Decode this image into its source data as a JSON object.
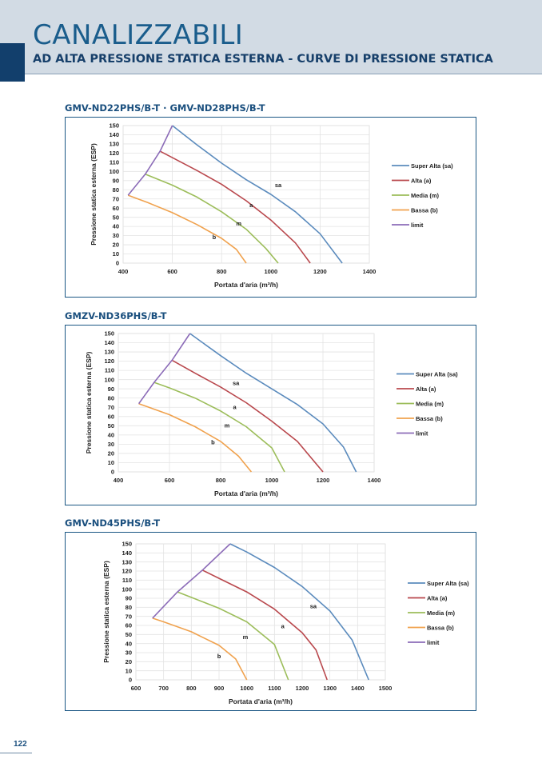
{
  "header": {
    "title": "CANALIZZABILI",
    "subtitle": "AD ALTA PRESSIONE STATICA ESTERNA - CURVE DI PRESSIONE STATICA"
  },
  "page_number": "122",
  "colors": {
    "super_alta": "#5b8bbd",
    "alta": "#b9484d",
    "media": "#9cbd5a",
    "bassa": "#f0a24e",
    "limit": "#8c6cb8"
  },
  "chart_data": [
    {
      "type": "line",
      "title": "GMV-ND22PHS/B-T · GMV-ND28PHS/B-T",
      "xlabel": "Portata d'aria (m³/h)",
      "ylabel": "Pressione statica esterna (ESP)",
      "xlim": [
        400,
        1400
      ],
      "ylim": [
        0,
        150
      ],
      "x_ticks": [
        "400",
        "600",
        "800",
        "1000",
        "1200",
        "1400"
      ],
      "y_ticks": [
        "0",
        "10",
        "20",
        "30",
        "40",
        "50",
        "60",
        "70",
        "80",
        "90",
        "100",
        "110",
        "120",
        "130",
        "140",
        "150"
      ],
      "legend": [
        "Super Alta (sa)",
        "Alta (a)",
        "Media (m)",
        "Bassa (b)",
        "limit"
      ],
      "series": [
        {
          "name": "Super Alta (sa)",
          "label": "sa",
          "points": [
            [
              600,
              150
            ],
            [
              700,
              129
            ],
            [
              800,
              109
            ],
            [
              900,
              91
            ],
            [
              1000,
              75
            ],
            [
              1100,
              56
            ],
            [
              1200,
              32
            ],
            [
              1290,
              0
            ]
          ]
        },
        {
          "name": "Alta (a)",
          "label": "a",
          "points": [
            [
              550,
              122
            ],
            [
              600,
              115
            ],
            [
              700,
              101
            ],
            [
              800,
              86
            ],
            [
              900,
              68
            ],
            [
              1000,
              47
            ],
            [
              1100,
              22
            ],
            [
              1160,
              0
            ]
          ]
        },
        {
          "name": "Media (m)",
          "label": "m",
          "points": [
            [
              490,
              97
            ],
            [
              600,
              85
            ],
            [
              700,
              72
            ],
            [
              800,
              56
            ],
            [
              900,
              37
            ],
            [
              980,
              16
            ],
            [
              1030,
              0
            ]
          ]
        },
        {
          "name": "Bassa (b)",
          "label": "b",
          "points": [
            [
              420,
              74
            ],
            [
              500,
              66
            ],
            [
              600,
              55
            ],
            [
              700,
              42
            ],
            [
              800,
              27
            ],
            [
              860,
              15
            ],
            [
              900,
              0
            ]
          ]
        },
        {
          "name": "limit",
          "label": "",
          "points": [
            [
              420,
              74
            ],
            [
              490,
              97
            ],
            [
              550,
              122
            ],
            [
              600,
              150
            ]
          ]
        }
      ],
      "label_positions": [
        [
          1030,
          83
        ],
        [
          920,
          61
        ],
        [
          870,
          41
        ],
        [
          770,
          26
        ]
      ]
    },
    {
      "type": "line",
      "title": "GMZV-ND36PHS/B-T",
      "xlabel": "Portata d'aria (m³/h)",
      "ylabel": "Pressione statica esterna (ESP)",
      "xlim": [
        400,
        1400
      ],
      "ylim": [
        0,
        150
      ],
      "x_ticks": [
        "400",
        "600",
        "800",
        "1000",
        "1200",
        "1400"
      ],
      "y_ticks": [
        "0",
        "10",
        "20",
        "30",
        "40",
        "50",
        "60",
        "70",
        "80",
        "90",
        "100",
        "110",
        "120",
        "130",
        "140",
        "150"
      ],
      "legend": [
        "Super Alta (sa)",
        "Alta (a)",
        "Media (m)",
        "Bassa (b)",
        "limit"
      ],
      "series": [
        {
          "name": "Super Alta (sa)",
          "label": "sa",
          "points": [
            [
              680,
              150
            ],
            [
              800,
              126
            ],
            [
              900,
              107
            ],
            [
              1000,
              90
            ],
            [
              1100,
              73
            ],
            [
              1200,
              52
            ],
            [
              1280,
              27
            ],
            [
              1330,
              0
            ]
          ]
        },
        {
          "name": "Alta (a)",
          "label": "a",
          "points": [
            [
              610,
              121
            ],
            [
              700,
              107
            ],
            [
              800,
              92
            ],
            [
              900,
              75
            ],
            [
              1000,
              55
            ],
            [
              1100,
              33
            ],
            [
              1200,
              0
            ]
          ]
        },
        {
          "name": "Media (m)",
          "label": "m",
          "points": [
            [
              540,
              97
            ],
            [
              600,
              91
            ],
            [
              700,
              80
            ],
            [
              800,
              66
            ],
            [
              900,
              49
            ],
            [
              1000,
              26
            ],
            [
              1050,
              0
            ]
          ]
        },
        {
          "name": "Bassa (b)",
          "label": "b",
          "points": [
            [
              480,
              74
            ],
            [
              600,
              62
            ],
            [
              700,
              49
            ],
            [
              800,
              33
            ],
            [
              870,
              17
            ],
            [
              920,
              0
            ]
          ]
        },
        {
          "name": "limit",
          "label": "",
          "points": [
            [
              480,
              74
            ],
            [
              540,
              97
            ],
            [
              610,
              121
            ],
            [
              680,
              150
            ]
          ]
        }
      ],
      "label_positions": [
        [
          860,
          94
        ],
        [
          855,
          68
        ],
        [
          825,
          48
        ],
        [
          770,
          30
        ]
      ]
    },
    {
      "type": "line",
      "title": "GMV-ND45PHS/B-T",
      "xlabel": "Portata d'aria (m³/h)",
      "ylabel": "Pressione statica esterna (ESP)",
      "xlim": [
        600,
        1500
      ],
      "ylim": [
        0,
        150
      ],
      "x_ticks": [
        "600",
        "700",
        "800",
        "900",
        "1000",
        "1100",
        "1200",
        "1300",
        "1400",
        "1500"
      ],
      "y_ticks": [
        "0",
        "10",
        "20",
        "30",
        "40",
        "50",
        "60",
        "70",
        "80",
        "90",
        "100",
        "110",
        "120",
        "130",
        "140",
        "150"
      ],
      "legend": [
        "Super Alta (sa)",
        "Alta (a)",
        "Media (m)",
        "Bassa (b)",
        "limit"
      ],
      "series": [
        {
          "name": "Super Alta (sa)",
          "label": "sa",
          "points": [
            [
              940,
              150
            ],
            [
              1000,
              141
            ],
            [
              1100,
              124
            ],
            [
              1200,
              103
            ],
            [
              1300,
              76
            ],
            [
              1380,
              44
            ],
            [
              1440,
              0
            ]
          ]
        },
        {
          "name": "Alta (a)",
          "label": "a",
          "points": [
            [
              840,
              121
            ],
            [
              900,
              112
            ],
            [
              1000,
              97
            ],
            [
              1100,
              78
            ],
            [
              1200,
              52
            ],
            [
              1250,
              33
            ],
            [
              1290,
              0
            ]
          ]
        },
        {
          "name": "Media (m)",
          "label": "m",
          "points": [
            [
              750,
              97
            ],
            [
              800,
              91
            ],
            [
              900,
              79
            ],
            [
              1000,
              64
            ],
            [
              1100,
              39
            ],
            [
              1150,
              0
            ]
          ]
        },
        {
          "name": "Bassa (b)",
          "label": "b",
          "points": [
            [
              660,
              68
            ],
            [
              700,
              64
            ],
            [
              800,
              53
            ],
            [
              900,
              38
            ],
            [
              960,
              23
            ],
            [
              1000,
              0
            ]
          ]
        },
        {
          "name": "limit",
          "label": "",
          "points": [
            [
              660,
              68
            ],
            [
              750,
              97
            ],
            [
              840,
              121
            ],
            [
              940,
              150
            ]
          ]
        }
      ],
      "label_positions": [
        [
          1240,
          79
        ],
        [
          1130,
          57
        ],
        [
          995,
          45
        ],
        [
          900,
          24
        ]
      ]
    }
  ]
}
